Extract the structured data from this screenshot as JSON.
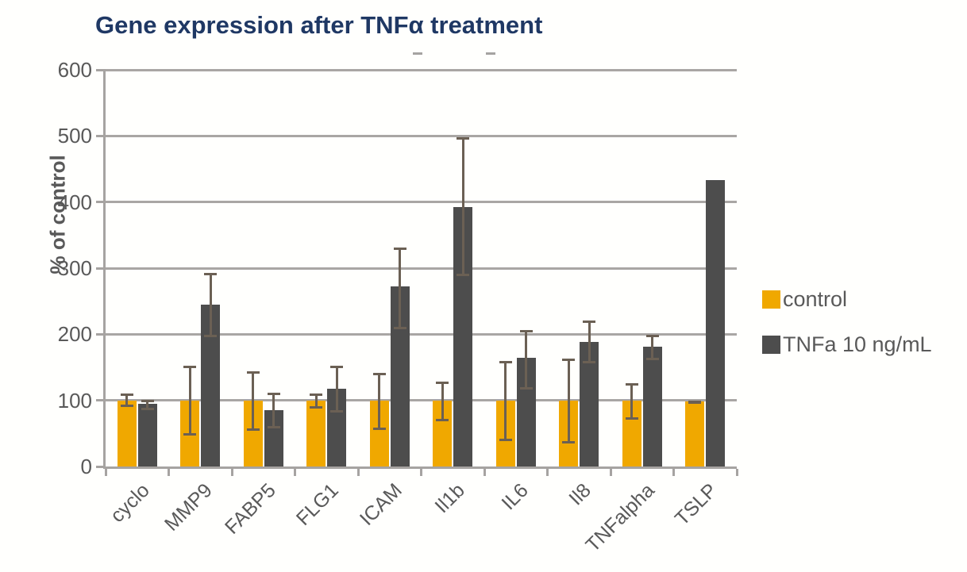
{
  "chart_data": {
    "type": "bar",
    "title": "Gene expression after TNFα treatment",
    "xlabel": "",
    "ylabel": "% of control",
    "ylim": [
      0,
      600
    ],
    "yticks": [
      0,
      100,
      200,
      300,
      400,
      500,
      600
    ],
    "grid": true,
    "legend_position": "right",
    "categories": [
      "cyclo",
      "MMP9",
      "FABP5",
      "FLG1",
      "ICAM",
      "Il1b",
      "IL6",
      "Il8",
      "TNFalpha",
      "TSLP"
    ],
    "series": [
      {
        "name": "control",
        "color": "#f0a800",
        "values": [
          100,
          100,
          100,
          100,
          100,
          100,
          100,
          100,
          100,
          98
        ],
        "error_low": [
          90,
          47,
          54,
          87,
          55,
          68,
          38,
          35,
          71,
          95
        ],
        "error_high": [
          110,
          153,
          144,
          110,
          142,
          128,
          160,
          163,
          126,
          100
        ]
      },
      {
        "name": "TNFa 10 ng/mL",
        "color": "#4d4d4d",
        "values": [
          95,
          245,
          85,
          118,
          272,
          392,
          164,
          188,
          181,
          433
        ],
        "error_low": [
          85,
          195,
          57,
          82,
          208,
          288,
          117,
          156,
          161,
          null
        ],
        "error_high": [
          101,
          293,
          112,
          152,
          331,
          498,
          207,
          221,
          199,
          null
        ]
      }
    ]
  },
  "colors": {
    "title": "#1f3864",
    "axis_text": "#595959",
    "gridline": "#a6a6a6",
    "error_bar": "#6b6054",
    "background": "#fffffd"
  }
}
